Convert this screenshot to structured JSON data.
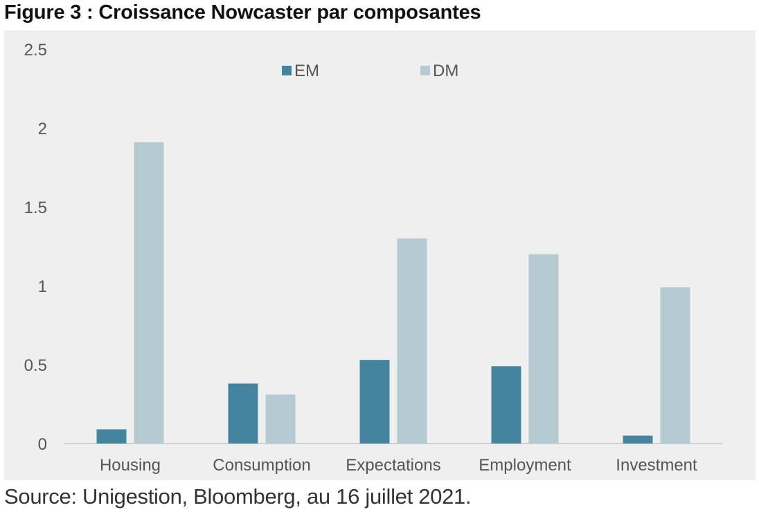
{
  "title": "Figure 3 : Croissance Nowcaster par composantes",
  "source": "Source: Unigestion, Bloomberg, au 16 juillet 2021.",
  "colors": {
    "em": "#45849f",
    "dm": "#b5cad1",
    "background": "#efefef",
    "axis": "#d0d0d0",
    "text": "#555555"
  },
  "chart_data": {
    "type": "bar",
    "title": "Figure 3 : Croissance Nowcaster par composantes",
    "xlabel": "",
    "ylabel": "",
    "categories": [
      "Housing",
      "Consumption",
      "Expectations",
      "Employment",
      "Investment"
    ],
    "series": [
      {
        "name": "EM",
        "values": [
          0.09,
          0.38,
          0.53,
          0.49,
          0.05
        ]
      },
      {
        "name": "DM",
        "values": [
          1.91,
          0.31,
          1.3,
          1.2,
          0.99
        ]
      }
    ],
    "ylim": [
      0,
      2.5
    ],
    "yticks": [
      0,
      0.5,
      1,
      1.5,
      2,
      2.5
    ],
    "ytick_labels": [
      "0",
      "0.5",
      "1",
      "1.5",
      "2",
      "2.5"
    ],
    "grid": false,
    "legend_position": "top-center"
  }
}
